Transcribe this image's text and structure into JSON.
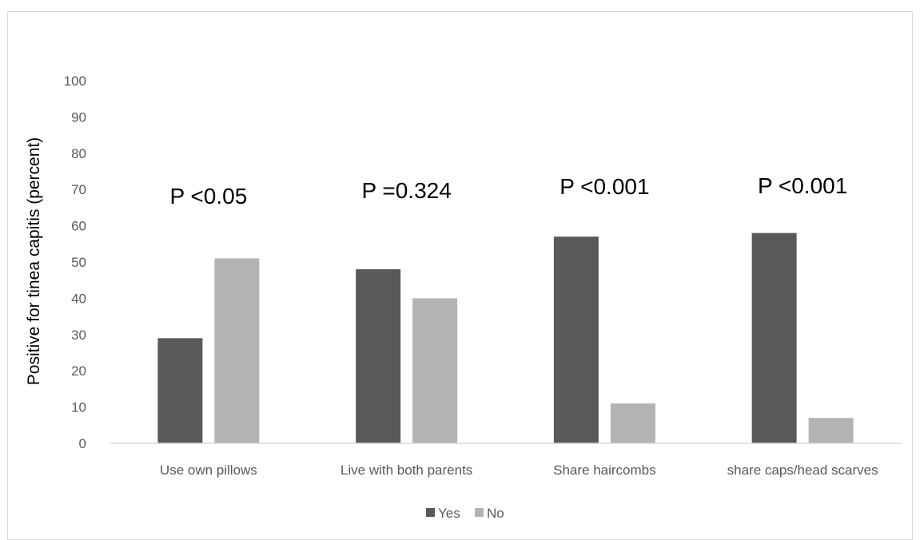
{
  "chart_data": {
    "type": "bar",
    "categories": [
      "Use own pillows",
      "Live with both parents",
      "Share haircombs",
      "share caps/head scarves"
    ],
    "series": [
      {
        "name": "Yes",
        "values": [
          29,
          48,
          57,
          58
        ],
        "color": "#595959"
      },
      {
        "name": "No",
        "values": [
          51,
          40,
          11,
          7
        ],
        "color": "#b3b3b3"
      }
    ],
    "annotations": [
      "P <0.05",
      "P =0.324",
      "P <0.001",
      "P <0.001"
    ],
    "title": "",
    "xlabel": "",
    "ylabel": "Positive for tinea capitis (percent)",
    "ylim": [
      0,
      100
    ],
    "yticks": [
      0,
      10,
      20,
      30,
      40,
      50,
      60,
      70,
      80,
      90,
      100
    ],
    "grid": false,
    "legend_position": "bottom",
    "axis_color": "#d9d9d9"
  }
}
